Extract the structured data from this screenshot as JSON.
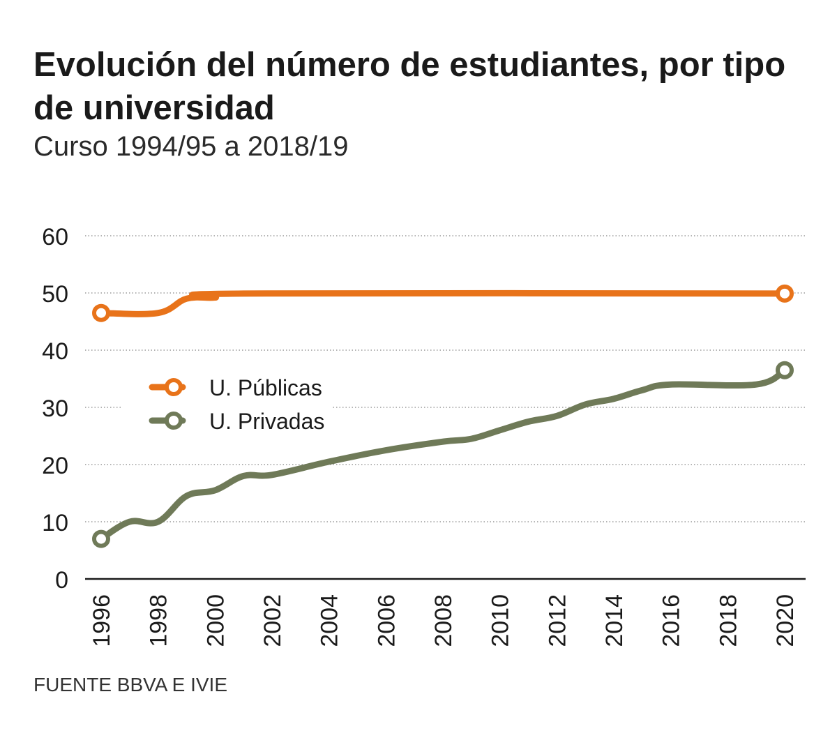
{
  "header": {
    "title": "Evolución del número de estudiantes, por tipo de universidad",
    "subtitle": "Curso 1994/95 a 2018/19"
  },
  "footer": {
    "source": "FUENTE BBVA E IVIE"
  },
  "colors": {
    "publicas": "#e8731a",
    "privadas": "#6f7a58",
    "grid": "#9a9a9a",
    "axis": "#1a1a1a"
  },
  "chart_data": {
    "type": "line",
    "ylim": [
      0,
      60
    ],
    "yticks": [
      0,
      10,
      20,
      30,
      40,
      50,
      60
    ],
    "xlim": [
      1996,
      2020
    ],
    "xticks": [
      "1996",
      "1998",
      "2000",
      "2002",
      "2004",
      "2006",
      "2008",
      "2010",
      "2012",
      "2014",
      "2016",
      "2018",
      "2020"
    ],
    "grid": true,
    "legend": "center-left",
    "series": [
      {
        "name": "U. Públicas",
        "color": "#e8731a",
        "points": [
          [
            1996,
            46.5
          ],
          [
            1998,
            46.5
          ],
          [
            1999,
            49
          ],
          [
            2000,
            49.2
          ],
          [
            2001,
            49.9
          ],
          [
            2020,
            49.9
          ]
        ]
      },
      {
        "name": "U. Privadas",
        "color": "#6f7a58",
        "points": [
          [
            1996,
            7
          ],
          [
            1997,
            10
          ],
          [
            1998,
            10
          ],
          [
            1999,
            14.5
          ],
          [
            2000,
            15.5
          ],
          [
            2001,
            18
          ],
          [
            2002,
            18.2
          ],
          [
            2004,
            20.5
          ],
          [
            2006,
            22.5
          ],
          [
            2008,
            24
          ],
          [
            2009,
            24.5
          ],
          [
            2010,
            26
          ],
          [
            2011,
            27.5
          ],
          [
            2012,
            28.5
          ],
          [
            2013,
            30.5
          ],
          [
            2014,
            31.5
          ],
          [
            2015,
            33
          ],
          [
            2016,
            34
          ],
          [
            2019,
            34
          ],
          [
            2020,
            36.5
          ]
        ]
      }
    ]
  }
}
